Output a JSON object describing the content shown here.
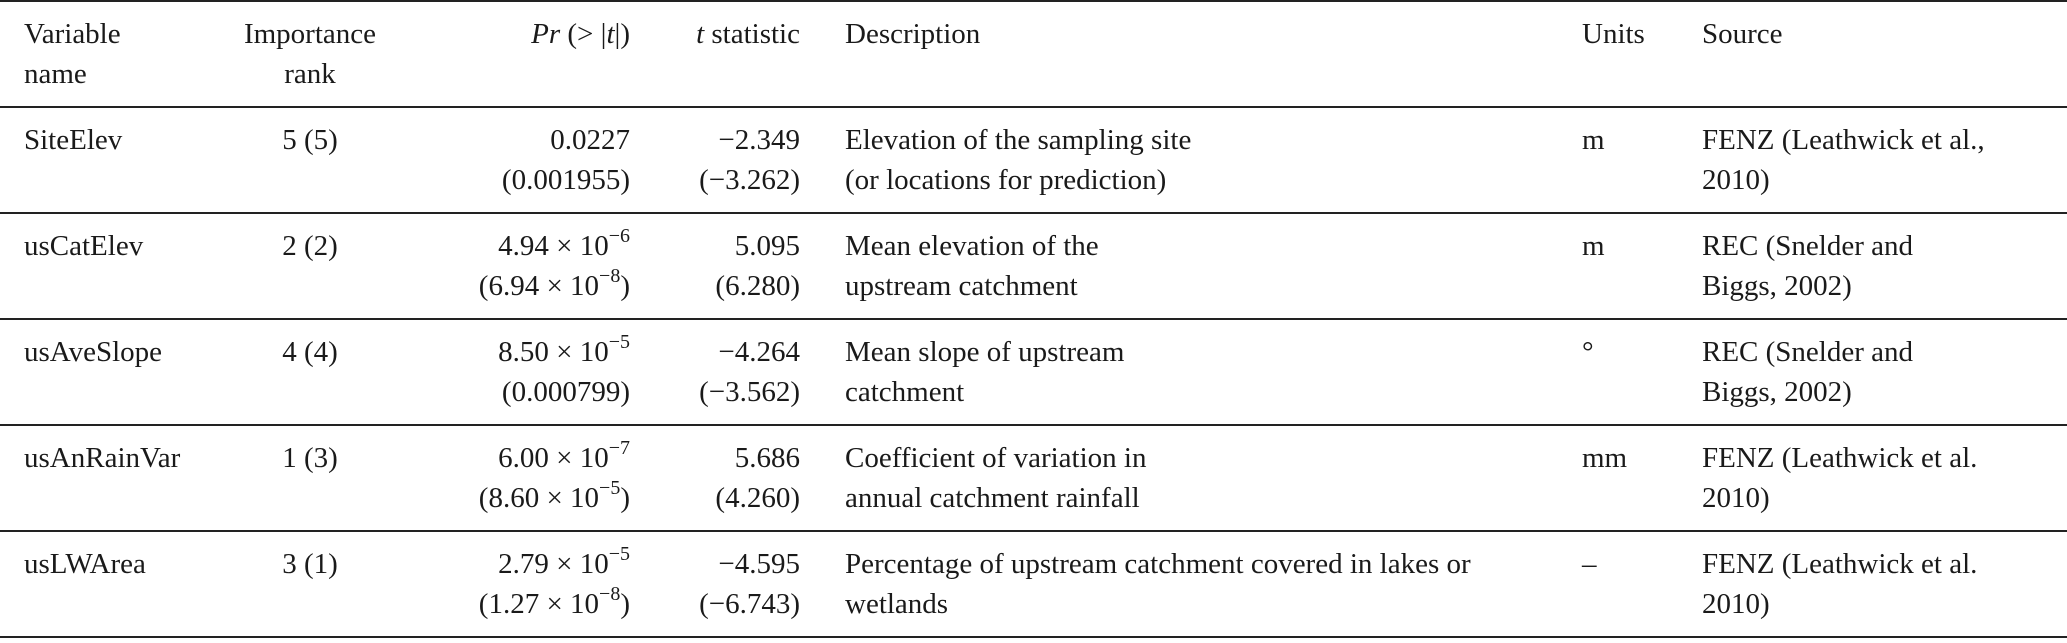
{
  "headers": {
    "name": [
      "Variable",
      "name"
    ],
    "rank": [
      "Importance",
      "rank"
    ],
    "pr": {
      "italic_pr": "Pr",
      "rest": " (> |",
      "italic_t": "t",
      "close": "|)"
    },
    "t": {
      "italic_t": "t",
      "rest": " statistic"
    },
    "desc": "Description",
    "units": "Units",
    "source": "Source"
  },
  "rows": [
    {
      "name": "SiteElev",
      "rank": "5 (5)",
      "pr_line1": {
        "mant": "0.0227",
        "exp": ""
      },
      "pr_line2": {
        "mant": "(0.001955)",
        "exp": "",
        "close": ""
      },
      "t_line1": "−2.349",
      "t_line2": "(−3.262)",
      "desc_line1": "Elevation of the sampling site",
      "desc_line2": "(or locations for prediction)",
      "units": "m",
      "src_line1": "FENZ (Leathwick et al.,",
      "src_line2": "2010)"
    },
    {
      "name": "usCatElev",
      "rank": "2 (2)",
      "pr_line1": {
        "mant": "4.94 × 10",
        "exp": "−6"
      },
      "pr_line2": {
        "mant": "(6.94 × 10",
        "exp": "−8",
        "close": ")"
      },
      "t_line1": "5.095",
      "t_line2": "(6.280)",
      "desc_line1": "Mean elevation of the",
      "desc_line2": "upstream catchment",
      "units": "m",
      "src_line1": "REC (Snelder and",
      "src_line2": "Biggs, 2002)"
    },
    {
      "name": "usAveSlope",
      "rank": "4 (4)",
      "pr_line1": {
        "mant": "8.50 × 10",
        "exp": "−5"
      },
      "pr_line2": {
        "mant": "(0.000799)",
        "exp": "",
        "close": ""
      },
      "t_line1": "−4.264",
      "t_line2": "(−3.562)",
      "desc_line1": "Mean slope of upstream",
      "desc_line2": "catchment",
      "units": "°",
      "src_line1": "REC (Snelder and",
      "src_line2": "Biggs, 2002)"
    },
    {
      "name": "usAnRainVar",
      "rank": "1 (3)",
      "pr_line1": {
        "mant": "6.00 × 10",
        "exp": "−7"
      },
      "pr_line2": {
        "mant": "(8.60 × 10",
        "exp": "−5",
        "close": ")"
      },
      "t_line1": "5.686",
      "t_line2": "(4.260)",
      "desc_line1": "Coefficient of variation in",
      "desc_line2": "annual catchment rainfall",
      "units": "mm",
      "src_line1": "FENZ (Leathwick et al.",
      "src_line2": "2010)"
    },
    {
      "name": "usLWArea",
      "rank": "3 (1)",
      "pr_line1": {
        "mant": "2.79 × 10",
        "exp": "−5"
      },
      "pr_line2": {
        "mant": "(1.27 × 10",
        "exp": "−8",
        "close": ")"
      },
      "t_line1": "−4.595",
      "t_line2": "(−6.743)",
      "desc_line1": "Percentage of upstream catchment covered in lakes or",
      "desc_line2": "wetlands",
      "units": "–",
      "src_line1": "FENZ (Leathwick et al.",
      "src_line2": "2010)"
    }
  ]
}
